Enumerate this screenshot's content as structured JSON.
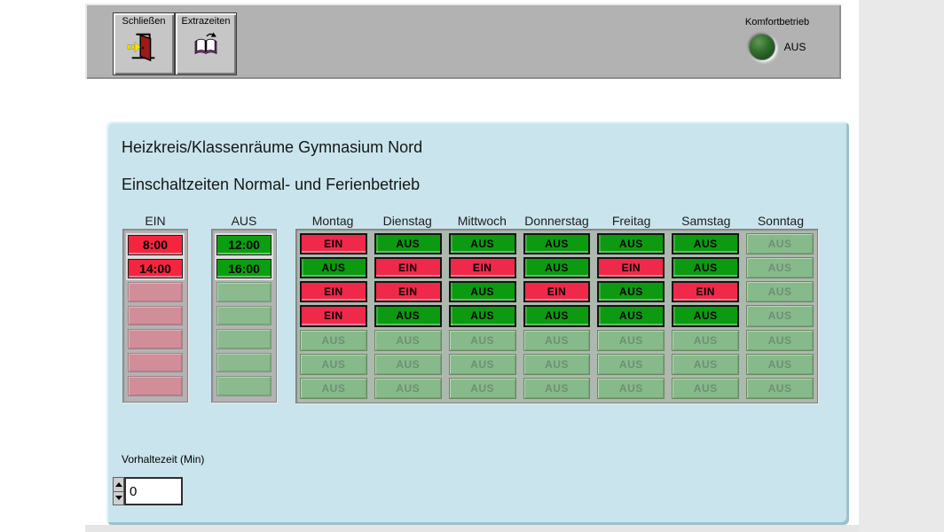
{
  "toolbar": {
    "close_button": {
      "label": "Schließen"
    },
    "extra_times_button": {
      "label": "Extrazeiten"
    },
    "comfort": {
      "label": "Komfortbetrieb",
      "state": "AUS"
    }
  },
  "panel": {
    "title": "Heizkreis/Klassenräume Gymnasium Nord",
    "subtitle": "Einschaltzeiten Normal- und Ferienbetrieb",
    "ein_column": {
      "header": "EIN",
      "values": [
        "8:00",
        "14:00",
        "",
        "",
        "",
        "",
        ""
      ]
    },
    "aus_column": {
      "header": "AUS",
      "values": [
        "12:00",
        "16:00",
        "",
        "",
        "",
        "",
        ""
      ]
    },
    "schedule": {
      "day_headers": [
        "Montag",
        "Dienstag",
        "Mittwoch",
        "Donnerstag",
        "Freitag",
        "Samstag",
        "Sonntag"
      ],
      "rows": [
        [
          {
            "label": "EIN",
            "state": "on"
          },
          {
            "label": "AUS",
            "state": "off"
          },
          {
            "label": "AUS",
            "state": "off"
          },
          {
            "label": "AUS",
            "state": "off"
          },
          {
            "label": "AUS",
            "state": "off"
          },
          {
            "label": "AUS",
            "state": "off"
          },
          {
            "label": "AUS",
            "state": "disabled"
          }
        ],
        [
          {
            "label": "AUS",
            "state": "off"
          },
          {
            "label": "EIN",
            "state": "on"
          },
          {
            "label": "EIN",
            "state": "on"
          },
          {
            "label": "AUS",
            "state": "off"
          },
          {
            "label": "EIN",
            "state": "on"
          },
          {
            "label": "AUS",
            "state": "off"
          },
          {
            "label": "AUS",
            "state": "disabled"
          }
        ],
        [
          {
            "label": "EIN",
            "state": "on"
          },
          {
            "label": "EIN",
            "state": "on"
          },
          {
            "label": "AUS",
            "state": "off"
          },
          {
            "label": "EIN",
            "state": "on"
          },
          {
            "label": "AUS",
            "state": "off"
          },
          {
            "label": "EIN",
            "state": "on"
          },
          {
            "label": "AUS",
            "state": "disabled"
          }
        ],
        [
          {
            "label": "EIN",
            "state": "on"
          },
          {
            "label": "AUS",
            "state": "off"
          },
          {
            "label": "AUS",
            "state": "off"
          },
          {
            "label": "AUS",
            "state": "off"
          },
          {
            "label": "AUS",
            "state": "off"
          },
          {
            "label": "AUS",
            "state": "off"
          },
          {
            "label": "AUS",
            "state": "disabled"
          }
        ],
        [
          {
            "label": "AUS",
            "state": "disabled"
          },
          {
            "label": "AUS",
            "state": "disabled"
          },
          {
            "label": "AUS",
            "state": "disabled"
          },
          {
            "label": "AUS",
            "state": "disabled"
          },
          {
            "label": "AUS",
            "state": "disabled"
          },
          {
            "label": "AUS",
            "state": "disabled"
          },
          {
            "label": "AUS",
            "state": "disabled"
          }
        ],
        [
          {
            "label": "AUS",
            "state": "disabled"
          },
          {
            "label": "AUS",
            "state": "disabled"
          },
          {
            "label": "AUS",
            "state": "disabled"
          },
          {
            "label": "AUS",
            "state": "disabled"
          },
          {
            "label": "AUS",
            "state": "disabled"
          },
          {
            "label": "AUS",
            "state": "disabled"
          },
          {
            "label": "AUS",
            "state": "disabled"
          }
        ],
        [
          {
            "label": "AUS",
            "state": "disabled"
          },
          {
            "label": "AUS",
            "state": "disabled"
          },
          {
            "label": "AUS",
            "state": "disabled"
          },
          {
            "label": "AUS",
            "state": "disabled"
          },
          {
            "label": "AUS",
            "state": "disabled"
          },
          {
            "label": "AUS",
            "state": "disabled"
          },
          {
            "label": "AUS",
            "state": "disabled"
          }
        ]
      ]
    },
    "vorhaltezeit": {
      "label": "Vorhaltezeit (Min)",
      "value": "0"
    }
  },
  "colors": {
    "on_red": "#f0294a",
    "off_green": "#0c9a10",
    "disabled_green": "#87ba8b",
    "disabled_pink": "#d18d98",
    "panel_blue": "#c9e4ec",
    "toolbar_gray": "#b2b2b2",
    "led_green": "#2f6c2b"
  }
}
